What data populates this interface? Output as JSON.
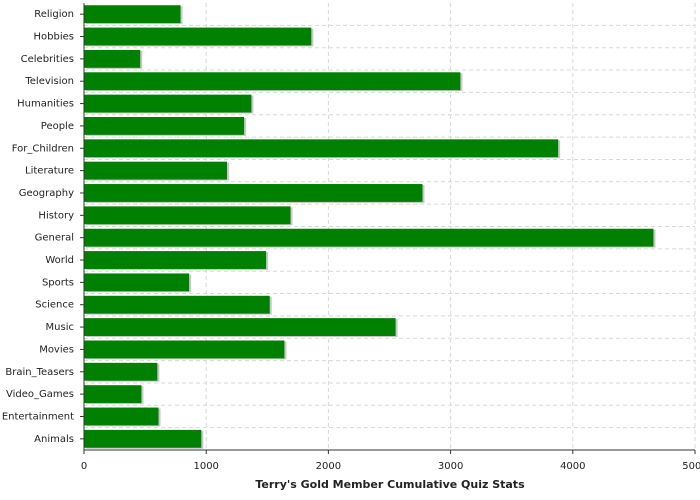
{
  "chart_data": {
    "type": "barh",
    "title": "Terry's Gold Member Cumulative Quiz Stats",
    "categories": [
      "Religion",
      "Hobbies",
      "Celebrities",
      "Television",
      "Humanities",
      "People",
      "For_Children",
      "Literature",
      "Geography",
      "History",
      "General",
      "World",
      "Sports",
      "Science",
      "Music",
      "Movies",
      "Brain_Teasers",
      "Video_Games",
      "Entertainment",
      "Animals"
    ],
    "values": [
      790,
      1860,
      460,
      3080,
      1370,
      1310,
      3880,
      1170,
      2770,
      1690,
      4660,
      1490,
      860,
      1520,
      2550,
      1640,
      600,
      470,
      610,
      960
    ],
    "color": "#008000",
    "xlim": [
      0,
      5000
    ],
    "xticks": [
      0,
      1000,
      2000,
      3000,
      4000,
      5000
    ],
    "grid": true
  }
}
